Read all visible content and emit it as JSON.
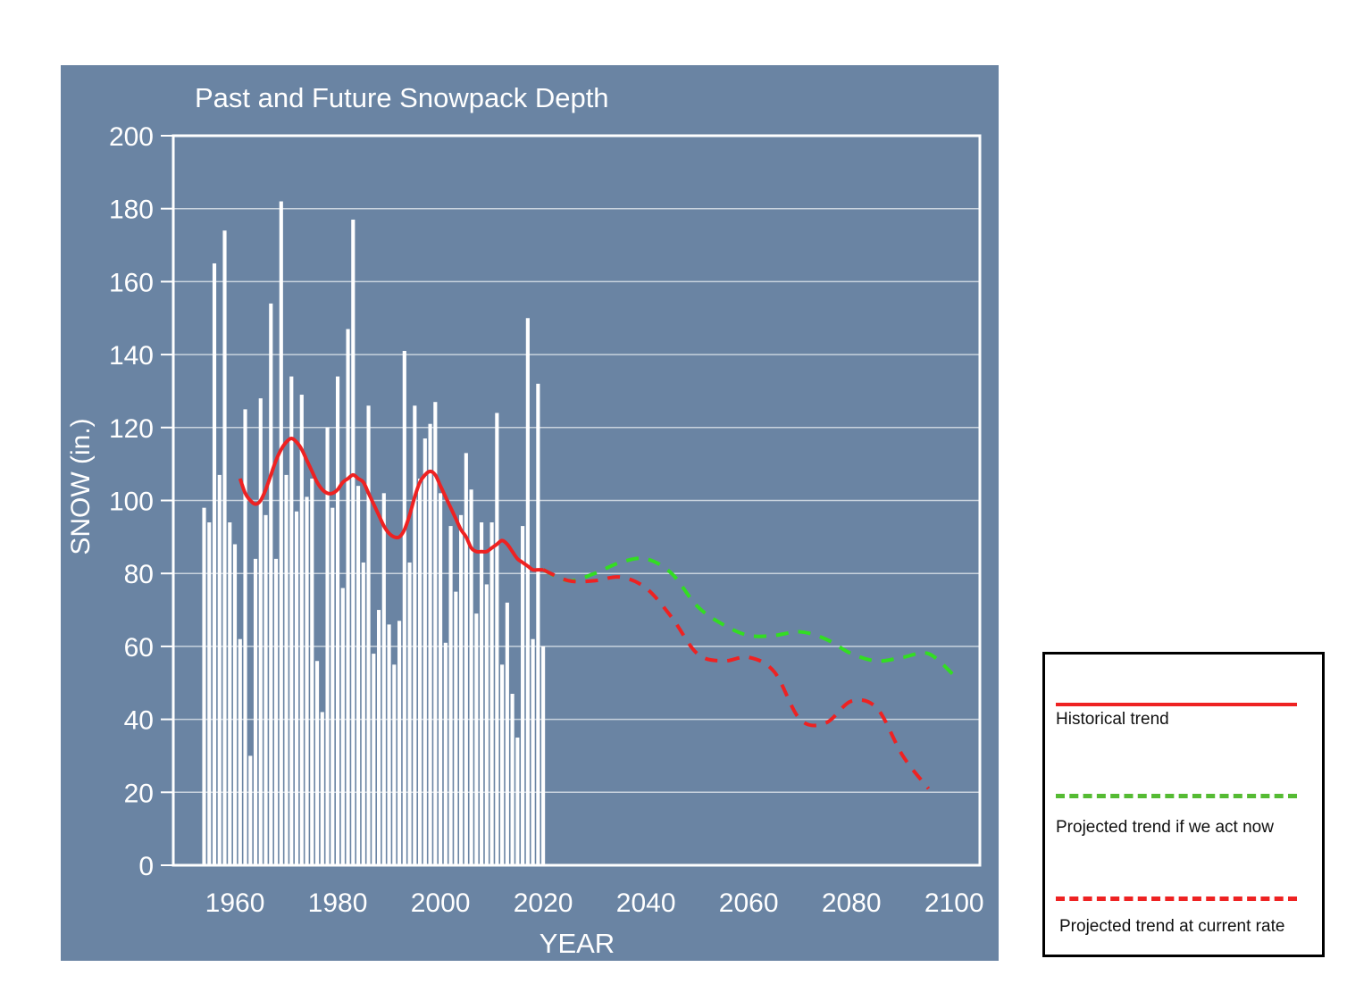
{
  "chart_data": {
    "type": "bar",
    "title": "Past and Future Snowpack Depth",
    "xlabel": "YEAR",
    "ylabel": "SNOW (in.)",
    "xlim": [
      1948,
      2105
    ],
    "ylim": [
      0,
      200
    ],
    "xticks": [
      1960,
      1980,
      2000,
      2020,
      2040,
      2060,
      2080,
      2100
    ],
    "yticks": [
      0,
      20,
      40,
      60,
      80,
      100,
      120,
      140,
      160,
      180,
      200
    ],
    "grid": true,
    "bars": {
      "name": "Annual snowpack depth",
      "years": [
        1954,
        1955,
        1956,
        1957,
        1958,
        1959,
        1960,
        1961,
        1962,
        1963,
        1964,
        1965,
        1966,
        1967,
        1968,
        1969,
        1970,
        1971,
        1972,
        1973,
        1974,
        1975,
        1976,
        1977,
        1978,
        1979,
        1980,
        1981,
        1982,
        1983,
        1984,
        1985,
        1986,
        1987,
        1988,
        1989,
        1990,
        1991,
        1992,
        1993,
        1994,
        1995,
        1996,
        1997,
        1998,
        1999,
        2000,
        2001,
        2002,
        2003,
        2004,
        2005,
        2006,
        2007,
        2008,
        2009,
        2010,
        2011,
        2012,
        2013,
        2014,
        2015,
        2016,
        2017,
        2018,
        2019,
        2020
      ],
      "values": [
        98,
        94,
        165,
        107,
        174,
        94,
        88,
        62,
        125,
        30,
        84,
        128,
        96,
        154,
        84,
        182,
        107,
        134,
        97,
        129,
        101,
        106,
        56,
        42,
        120,
        98,
        134,
        76,
        147,
        177,
        104,
        83,
        126,
        58,
        70,
        102,
        66,
        55,
        67,
        141,
        83,
        126,
        106,
        117,
        121,
        127,
        102,
        61,
        93,
        75,
        96,
        113,
        103,
        69,
        94,
        77,
        94,
        124,
        55,
        72,
        47,
        35,
        93,
        150,
        62,
        132,
        60
      ]
    },
    "series": [
      {
        "name": "Historical trend",
        "style": "solid",
        "color": "#ee2222",
        "x": [
          1961,
          1962,
          1963,
          1964,
          1965,
          1966,
          1967,
          1968,
          1969,
          1970,
          1971,
          1972,
          1973,
          1974,
          1975,
          1976,
          1977,
          1978,
          1979,
          1980,
          1981,
          1982,
          1983,
          1984,
          1985,
          1986,
          1987,
          1988,
          1989,
          1990,
          1991,
          1992,
          1993,
          1994,
          1995,
          1996,
          1997,
          1998,
          1999,
          2000,
          2001,
          2002,
          2003,
          2004,
          2005,
          2006,
          2007,
          2008,
          2009,
          2010,
          2011,
          2012,
          2013,
          2014,
          2015,
          2016,
          2017,
          2018,
          2019,
          2020
        ],
        "values": [
          106,
          102,
          100,
          99,
          100,
          103,
          107,
          111,
          114,
          116,
          117,
          116,
          114,
          111,
          108,
          105,
          103,
          102,
          102,
          103,
          105,
          106,
          107,
          106,
          105,
          102,
          99,
          96,
          93,
          91,
          90,
          90,
          92,
          96,
          101,
          105,
          107,
          108,
          107,
          104,
          101,
          98,
          95,
          92,
          90,
          87,
          86,
          86,
          86,
          87,
          88,
          89,
          88,
          86,
          84,
          83,
          82,
          81,
          81,
          81
        ]
      },
      {
        "name": "Projected trend if we act now",
        "style": "dashed",
        "color": "#33dd22",
        "x": [
          2020,
          2025,
          2030,
          2035,
          2040,
          2045,
          2050,
          2055,
          2060,
          2065,
          2070,
          2075,
          2080,
          2085,
          2090,
          2095,
          2100
        ],
        "values": [
          81,
          78,
          80,
          83,
          84,
          80,
          71,
          66,
          63,
          63,
          64,
          62,
          58,
          56,
          57,
          58,
          52
        ]
      },
      {
        "name": "Projected trend at current rate",
        "style": "dashed",
        "color": "#ee2222",
        "x": [
          2020,
          2025,
          2030,
          2035,
          2040,
          2045,
          2050,
          2055,
          2060,
          2065,
          2070,
          2075,
          2080,
          2085,
          2090,
          2095
        ],
        "values": [
          81,
          78,
          78,
          79,
          76,
          68,
          58,
          56,
          57,
          53,
          40,
          39,
          45,
          43,
          30,
          21
        ]
      }
    ]
  },
  "legend": {
    "items": [
      {
        "label": "Historical trend",
        "color": "#ee2222",
        "style": "solid"
      },
      {
        "label": "Projected trend if we act now",
        "color": "#55bb33",
        "style": "dashed"
      },
      {
        "label": "Projected trend at current rate",
        "color": "#ee2222",
        "style": "dashed"
      }
    ]
  },
  "colors": {
    "panel": "#6a84a3",
    "bars": "#ffffff",
    "grid": "#c9d3de",
    "text": "#ffffff"
  }
}
